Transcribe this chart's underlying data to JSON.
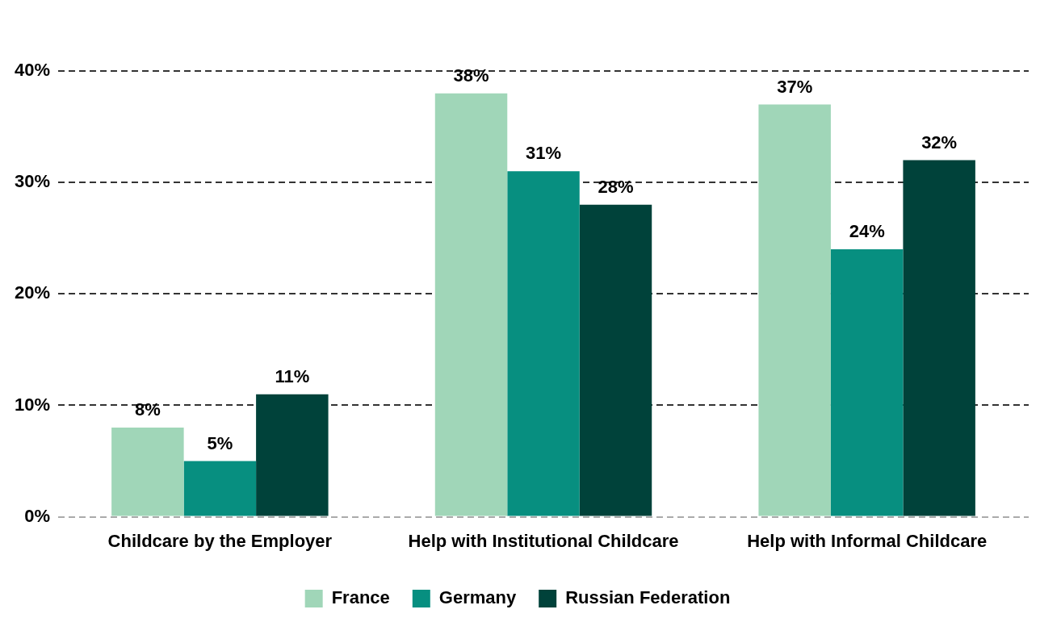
{
  "chart_data": {
    "type": "bar",
    "categories": [
      "Childcare by the Employer",
      "Help with Institutional Childcare",
      "Help with Informal Childcare"
    ],
    "series": [
      {
        "name": "France",
        "color": "#a0d6b8",
        "values": [
          8,
          38,
          37
        ],
        "value_labels": [
          "8%",
          "38%",
          "37%"
        ]
      },
      {
        "name": "Germany",
        "color": "#078f80",
        "values": [
          5,
          31,
          24
        ],
        "value_labels": [
          "5%",
          "31%",
          "24%"
        ]
      },
      {
        "name": "Russian Federation",
        "color": "#00423a",
        "values": [
          11,
          28,
          32
        ],
        "value_labels": [
          "11%",
          "28%",
          "32%"
        ]
      }
    ],
    "ylim": [
      0,
      40
    ],
    "yticks": [
      {
        "value": 0,
        "label": "0%"
      },
      {
        "value": 10,
        "label": "10%"
      },
      {
        "value": 20,
        "label": "20%"
      },
      {
        "value": 30,
        "label": "30%"
      },
      {
        "value": 40,
        "label": "40%"
      }
    ],
    "grid": "y",
    "line_style": "dashed",
    "legend": "bottom"
  }
}
